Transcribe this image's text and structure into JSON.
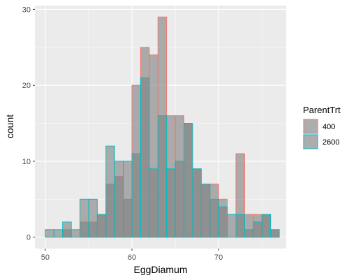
{
  "chart_data": {
    "type": "bar",
    "subtype": "overlaid-histogram",
    "xlabel": "EggDiamum",
    "ylabel": "count",
    "xlim": [
      48.8,
      77.8
    ],
    "ylim": [
      -1.5,
      30.5
    ],
    "x_ticks": [
      50,
      60,
      70
    ],
    "y_ticks": [
      0,
      10,
      20,
      30
    ],
    "bin_width": 1,
    "bin_starts": [
      50,
      51,
      52,
      53,
      54,
      55,
      56,
      57,
      58,
      59,
      60,
      61,
      62,
      63,
      64,
      65,
      66,
      67,
      68,
      69,
      70,
      71,
      72,
      73,
      74,
      75,
      76
    ],
    "series": [
      {
        "name": "400",
        "values": [
          0,
          0,
          1,
          0,
          2,
          2,
          3,
          7,
          8,
          5,
          20,
          25,
          24,
          29,
          16,
          16,
          15,
          9,
          7,
          7,
          5,
          0,
          11,
          3,
          3,
          3,
          1
        ],
        "outline": "#f8766d"
      },
      {
        "name": "2600",
        "values": [
          1,
          1,
          2,
          1,
          5,
          5,
          3,
          12,
          10,
          10,
          11,
          21,
          9,
          16,
          9,
          10,
          15,
          9,
          7,
          5,
          4,
          3,
          3,
          1,
          2,
          3,
          1
        ],
        "outline": "#00bfc4"
      }
    ],
    "fill": "#7f7f7f",
    "fill_opacity": 0.6,
    "legend": {
      "title": "ParentTrt",
      "position": "right"
    },
    "grid": true,
    "panel_background": "#ebebeb"
  }
}
